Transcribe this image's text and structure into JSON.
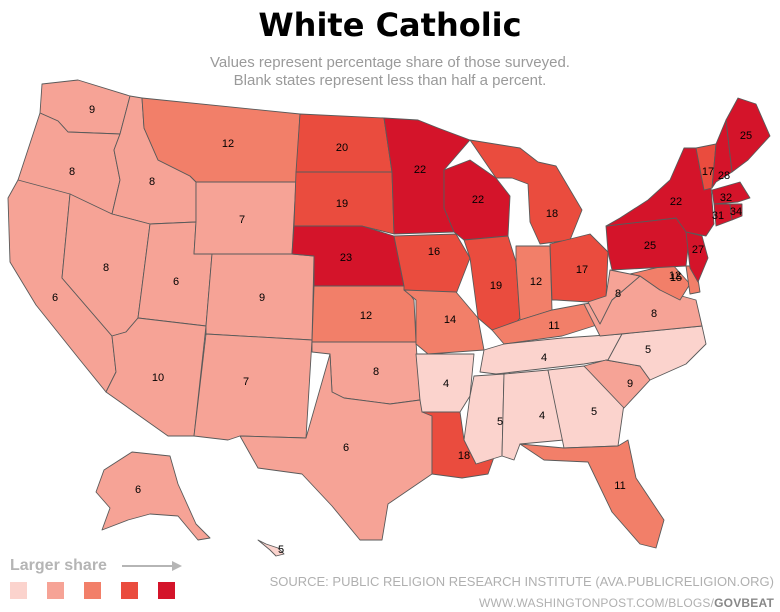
{
  "title": "White Catholic",
  "subtitle": [
    "Values represent percentage share of those surveyed.",
    "Blank states represent less than half a percent."
  ],
  "legend": {
    "label": "Larger share",
    "colors": [
      "#fbd3cd",
      "#f6a396",
      "#f27f69",
      "#ea4c3e",
      "#d4142a"
    ]
  },
  "source": "SOURCE: PUBLIC RELIGION RESEARCH INSTITUTE (AVA.PUBLICRELIGION.ORG)",
  "byline": {
    "url": "WWW.WASHINGTONPOST.COM/BLOGS/",
    "brand": "GOVBEAT"
  },
  "states": [
    {
      "id": "WA",
      "value": 9
    },
    {
      "id": "OR",
      "value": 8
    },
    {
      "id": "CA",
      "value": 6
    },
    {
      "id": "ID",
      "value": 8
    },
    {
      "id": "NV",
      "value": 8
    },
    {
      "id": "UT",
      "value": 6
    },
    {
      "id": "AZ",
      "value": 10
    },
    {
      "id": "MT",
      "value": 12
    },
    {
      "id": "WY",
      "value": 7
    },
    {
      "id": "CO",
      "value": 9
    },
    {
      "id": "NM",
      "value": 7
    },
    {
      "id": "ND",
      "value": 20
    },
    {
      "id": "SD",
      "value": 19
    },
    {
      "id": "NE",
      "value": 23
    },
    {
      "id": "KS",
      "value": 12
    },
    {
      "id": "OK",
      "value": 8
    },
    {
      "id": "TX",
      "value": 6
    },
    {
      "id": "MN",
      "value": 22
    },
    {
      "id": "IA",
      "value": 16
    },
    {
      "id": "MO",
      "value": 14
    },
    {
      "id": "AR",
      "value": 4
    },
    {
      "id": "LA",
      "value": 18
    },
    {
      "id": "WI",
      "value": 22
    },
    {
      "id": "IL",
      "value": 19
    },
    {
      "id": "MI",
      "value": 18
    },
    {
      "id": "IN",
      "value": 12
    },
    {
      "id": "OH",
      "value": 17
    },
    {
      "id": "KY",
      "value": 11
    },
    {
      "id": "TN",
      "value": 4
    },
    {
      "id": "MS",
      "value": 5
    },
    {
      "id": "AL",
      "value": 4
    },
    {
      "id": "GA",
      "value": 5
    },
    {
      "id": "FL",
      "value": 11
    },
    {
      "id": "SC",
      "value": 9
    },
    {
      "id": "NC",
      "value": 5
    },
    {
      "id": "VA",
      "value": 8
    },
    {
      "id": "WV",
      "value": 8
    },
    {
      "id": "MD",
      "value": 15
    },
    {
      "id": "DE",
      "value": 12
    },
    {
      "id": "PA",
      "value": 25
    },
    {
      "id": "NJ",
      "value": 27
    },
    {
      "id": "NY",
      "value": 22
    },
    {
      "id": "CT",
      "value": 31
    },
    {
      "id": "RI",
      "value": 34
    },
    {
      "id": "MA",
      "value": 32
    },
    {
      "id": "VT",
      "value": 17
    },
    {
      "id": "NH",
      "value": 28
    },
    {
      "id": "ME",
      "value": 25
    },
    {
      "id": "AK",
      "value": 6
    },
    {
      "id": "HI",
      "value": 5
    }
  ]
}
